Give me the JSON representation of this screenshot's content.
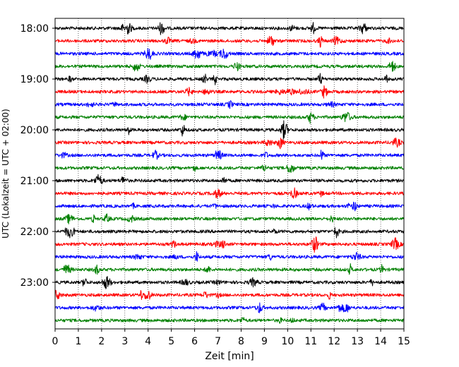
{
  "chart_data": {
    "type": "line",
    "title": "",
    "xlabel": "Zeit  [min]",
    "ylabel": "UTC (Lokalzeit = UTC + 02:00)",
    "xlim": [
      0,
      15
    ],
    "x_ticks": [
      "0",
      "1",
      "2",
      "3",
      "4",
      "5",
      "6",
      "7",
      "8",
      "9",
      "10",
      "11",
      "12",
      "13",
      "14",
      "15"
    ],
    "y_tick_labels": [
      "18:00",
      "19:00",
      "20:00",
      "21:00",
      "22:00",
      "23:00"
    ],
    "grid": "vertical dotted",
    "colors": [
      "#000000",
      "#ff0000",
      "#0000ff",
      "#008000"
    ],
    "traces": [
      {
        "time": "18:00",
        "color": "#000000"
      },
      {
        "time": "18:15",
        "color": "#ff0000"
      },
      {
        "time": "18:30",
        "color": "#0000ff"
      },
      {
        "time": "18:45",
        "color": "#008000"
      },
      {
        "time": "19:00",
        "color": "#000000"
      },
      {
        "time": "19:15",
        "color": "#ff0000"
      },
      {
        "time": "19:30",
        "color": "#0000ff"
      },
      {
        "time": "19:45",
        "color": "#008000"
      },
      {
        "time": "20:00",
        "color": "#000000"
      },
      {
        "time": "20:15",
        "color": "#ff0000"
      },
      {
        "time": "20:30",
        "color": "#0000ff"
      },
      {
        "time": "20:45",
        "color": "#008000"
      },
      {
        "time": "21:00",
        "color": "#000000"
      },
      {
        "time": "21:15",
        "color": "#ff0000"
      },
      {
        "time": "21:30",
        "color": "#0000ff"
      },
      {
        "time": "21:45",
        "color": "#008000"
      },
      {
        "time": "22:00",
        "color": "#000000"
      },
      {
        "time": "22:15",
        "color": "#ff0000"
      },
      {
        "time": "22:30",
        "color": "#0000ff"
      },
      {
        "time": "22:45",
        "color": "#008000"
      },
      {
        "time": "23:00",
        "color": "#000000"
      },
      {
        "time": "23:15",
        "color": "#ff0000"
      },
      {
        "time": "23:30",
        "color": "#0000ff"
      },
      {
        "time": "23:45",
        "color": "#008000"
      }
    ]
  }
}
